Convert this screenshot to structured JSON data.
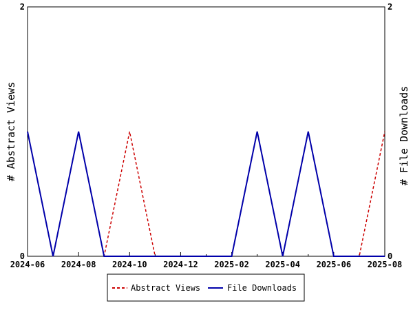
{
  "chart_data": {
    "type": "line",
    "x": [
      "2024-06",
      "2024-07",
      "2024-08",
      "2024-09",
      "2024-10",
      "2024-11",
      "2024-12",
      "2025-01",
      "2025-02",
      "2025-03",
      "2025-04",
      "2025-05",
      "2025-06",
      "2025-07",
      "2025-08"
    ],
    "x_tick_labels": [
      "2024-06",
      "2024-08",
      "2024-10",
      "2024-12",
      "2025-02",
      "2025-04",
      "2025-06",
      "2025-08"
    ],
    "series": [
      {
        "name": "Abstract Views",
        "axis": "left",
        "color": "#cc0000",
        "dash": "dashed",
        "values": [
          1,
          0,
          1,
          0,
          1,
          0,
          0,
          0,
          0,
          1,
          0,
          1,
          0,
          0,
          1
        ]
      },
      {
        "name": "File Downloads",
        "axis": "right",
        "color": "#0000aa",
        "dash": "solid",
        "values": [
          1,
          0,
          1,
          0,
          0,
          0,
          0,
          0,
          0,
          1,
          0,
          1,
          0,
          0,
          0
        ]
      }
    ],
    "ylabel": "# Abstract Views",
    "y2label": "# File Downloads",
    "ylim": [
      0,
      2
    ],
    "y2lim": [
      0,
      2
    ],
    "y_tick_labels": [
      "0",
      "2"
    ],
    "y2_tick_labels": [
      "0",
      "2"
    ],
    "legend_position": "bottom",
    "grid": false
  }
}
